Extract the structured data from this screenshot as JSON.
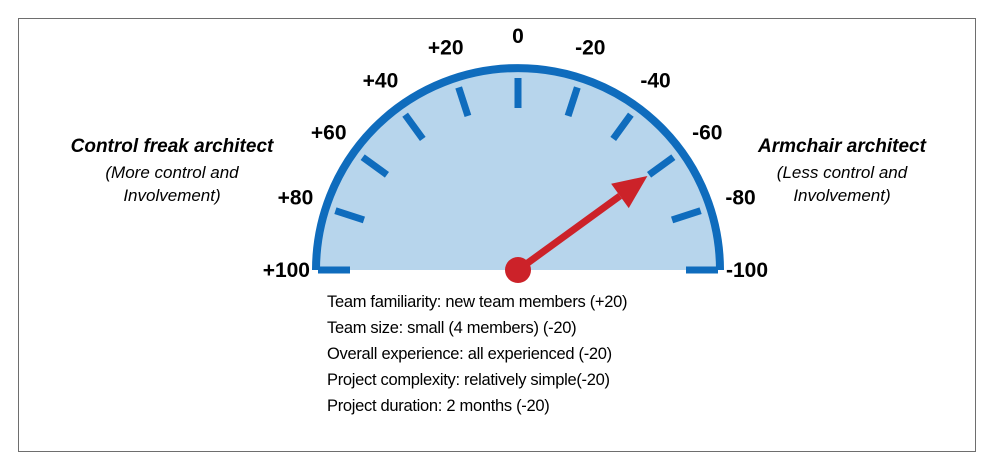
{
  "gauge": {
    "tick_labels": [
      "+100",
      "+80",
      "+60",
      "+40",
      "+20",
      "0",
      "-20",
      "-40",
      "-60",
      "-80",
      "-100"
    ],
    "scale_min": -100,
    "scale_max": 100,
    "needle_value": -60,
    "colors": {
      "fill": "#b7d5ec",
      "rim": "#0f6cbd",
      "needle": "#cc2229"
    }
  },
  "left_label": {
    "title": "Control freak architect",
    "sub_line1": "(More control and",
    "sub_line2": "Involvement)"
  },
  "right_label": {
    "title": "Armchair architect",
    "sub_line1": "(Less control and",
    "sub_line2": "Involvement)"
  },
  "factors": [
    "Team familiarity: new team members  (+20)",
    "Team size: small (4 members) (-20)",
    "Overall experience: all experienced (-20)",
    "Project complexity: relatively simple(-20)",
    "Project duration: 2 months (-20)"
  ]
}
